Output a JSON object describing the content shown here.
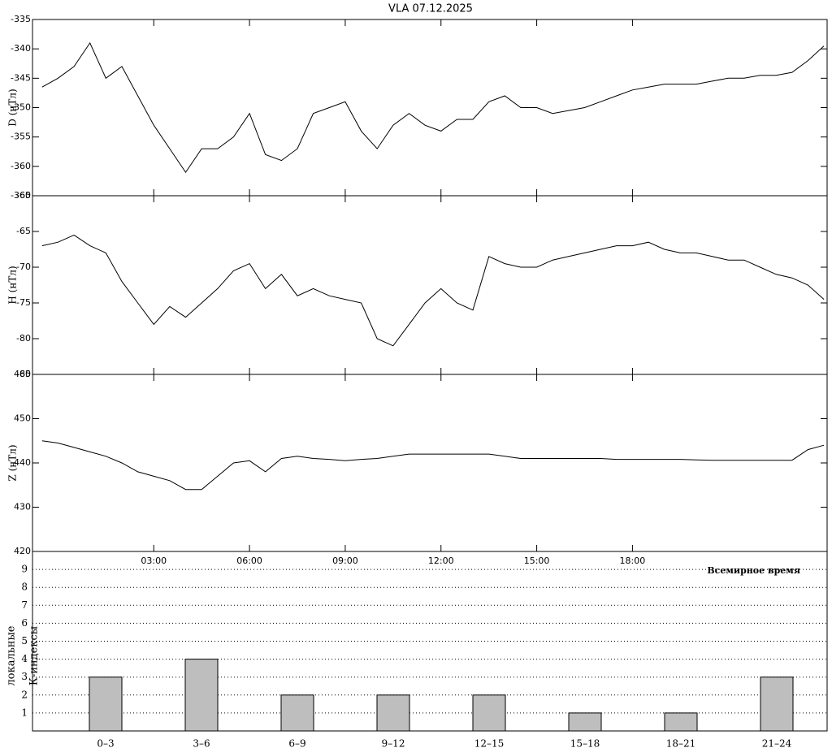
{
  "chart_data": [
    {
      "type": "line",
      "title": "VLA   07.12.2025",
      "y_label": "D (нТл)",
      "color": "#000000",
      "x": [
        -0.5,
        0,
        0.5,
        1,
        1.5,
        2,
        2.5,
        3,
        3.5,
        4,
        4.5,
        5,
        5.5,
        6,
        6.5,
        7,
        7.5,
        8,
        8.5,
        9,
        9.5,
        10,
        10.5,
        11,
        11.5,
        12,
        12.5,
        13,
        13.5,
        14,
        14.5,
        15,
        15.5,
        16,
        16.5,
        17,
        17.5,
        18,
        18.5,
        19,
        19.5,
        20,
        20.5,
        21,
        21.5,
        22,
        22.5,
        23,
        23.5,
        24
      ],
      "values": [
        -346.5,
        -345,
        -343,
        -339,
        -345,
        -343,
        -348,
        -353,
        -357,
        -361,
        -357,
        -357,
        -355,
        -351,
        -358,
        -359,
        -357,
        -351,
        -350,
        -349,
        -354,
        -357,
        -353,
        -351,
        -353,
        -354,
        -352,
        -352,
        -349,
        -348,
        -350,
        -350,
        -351,
        -350.5,
        -350,
        -349,
        -348,
        -347,
        -346.5,
        -346,
        -346,
        -346,
        -345.5,
        -345,
        -345,
        -344.5,
        -344.5,
        -344,
        -342,
        -339.5
      ],
      "xlim": [
        -0.8,
        24.1
      ],
      "ylim": [
        -365,
        -335
      ],
      "yticks": [
        -365,
        -360,
        -355,
        -350,
        -345,
        -340,
        -335
      ]
    },
    {
      "type": "line",
      "y_label": "H (нТл)",
      "color": "#000000",
      "x": [
        -0.5,
        0,
        0.5,
        1,
        1.5,
        2,
        2.5,
        3,
        3.5,
        4,
        4.5,
        5,
        5.5,
        6,
        6.5,
        7,
        7.5,
        8,
        8.5,
        9,
        9.5,
        10,
        10.5,
        11,
        11.5,
        12,
        12.5,
        13,
        13.5,
        14,
        14.5,
        15,
        15.5,
        16,
        16.5,
        17,
        17.5,
        18,
        18.5,
        19,
        19.5,
        20,
        20.5,
        21,
        21.5,
        22,
        22.5,
        23,
        23.5,
        24
      ],
      "values": [
        -67,
        -66.5,
        -65.5,
        -67,
        -68,
        -72,
        -75,
        -78,
        -75.5,
        -77,
        -75,
        -73,
        -70.5,
        -69.5,
        -73,
        -71,
        -74,
        -73,
        -74,
        -74.5,
        -75,
        -80,
        -81,
        -78,
        -75,
        -73,
        -75,
        -76,
        -68.5,
        -69.5,
        -70,
        -70,
        -69,
        -68.5,
        -68,
        -67.5,
        -67,
        -67,
        -66.5,
        -67.5,
        -68,
        -68,
        -68.5,
        -69,
        -69,
        -70,
        -71,
        -71.5,
        -72.5,
        -74.5
      ],
      "xlim": [
        -0.8,
        24.1
      ],
      "ylim": [
        -85,
        -60
      ],
      "yticks": [
        -85,
        -80,
        -75,
        -70,
        -65,
        -60
      ]
    },
    {
      "type": "line",
      "y_label": "Z (нТл)",
      "x_label": "Всемирное время",
      "color": "#000000",
      "x": [
        -0.5,
        0,
        0.5,
        1,
        1.5,
        2,
        2.5,
        3,
        3.5,
        4,
        4.5,
        5,
        5.5,
        6,
        6.5,
        7,
        7.5,
        8,
        8.5,
        9,
        9.5,
        10,
        10.5,
        11,
        11.5,
        12,
        12.5,
        13,
        13.5,
        14,
        14.5,
        15,
        15.5,
        16,
        16.5,
        17,
        17.5,
        18,
        18.5,
        19,
        19.5,
        20,
        20.5,
        21,
        21.5,
        22,
        22.5,
        23,
        23.5,
        24
      ],
      "values": [
        445,
        444.5,
        443.5,
        442.5,
        441.5,
        440,
        438,
        437,
        436,
        434,
        434,
        437,
        440,
        440.5,
        438,
        441,
        441.5,
        441,
        440.8,
        440.5,
        440.8,
        441,
        441.5,
        442,
        442,
        442,
        442,
        442,
        442,
        441.5,
        441,
        441,
        441,
        441,
        441,
        441,
        440.8,
        440.8,
        440.8,
        440.8,
        440.8,
        440.7,
        440.6,
        440.6,
        440.6,
        440.6,
        440.6,
        440.6,
        443,
        444
      ],
      "xlim": [
        -0.8,
        24.1
      ],
      "ylim": [
        420,
        460
      ],
      "yticks": [
        420,
        430,
        440,
        450,
        460
      ],
      "xticks": [
        {
          "value": 3,
          "label": "03:00"
        },
        {
          "value": 6,
          "label": "06:00"
        },
        {
          "value": 9,
          "label": "09:00"
        },
        {
          "value": 12,
          "label": "12:00"
        },
        {
          "value": 15,
          "label": "15:00"
        },
        {
          "value": 18,
          "label": "18:00"
        }
      ]
    },
    {
      "type": "bar",
      "y_label_lines": [
        "локальные",
        "К-индексы"
      ],
      "color": "#bebebe",
      "grid": true,
      "categories": [
        "0–3",
        "3–6",
        "6–9",
        "9–12",
        "12–15",
        "15–18",
        "18–21",
        "21–24"
      ],
      "values": [
        3,
        4,
        2,
        2,
        2,
        1,
        1,
        3
      ],
      "ylim": [
        0,
        10
      ],
      "yticks": [
        1,
        2,
        3,
        4,
        5,
        6,
        7,
        8,
        9
      ]
    }
  ]
}
